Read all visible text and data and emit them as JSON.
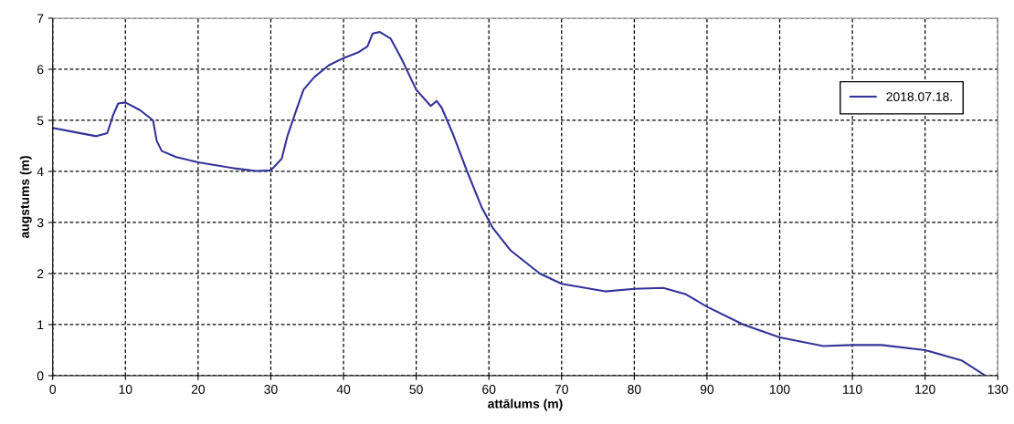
{
  "chart_data": {
    "type": "line",
    "xlabel": "attālums (m)",
    "ylabel": "augstums (m)",
    "x": [
      0,
      3,
      6,
      7.5,
      8.3,
      9,
      10,
      12,
      13.8,
      14.3,
      15,
      17,
      20,
      25,
      28,
      30,
      31.5,
      32.3,
      33.5,
      34.5,
      36,
      38,
      40,
      42,
      43.3,
      44,
      45,
      46.5,
      48,
      49,
      50,
      52,
      52.8,
      53.5,
      55,
      57,
      59,
      60.5,
      63,
      67,
      70,
      76,
      80,
      84,
      87,
      90,
      95,
      100,
      106,
      110,
      114,
      120,
      125,
      128.3
    ],
    "series": [
      {
        "name": "2018.07.18.",
        "color": "#333399",
        "values": [
          4.85,
          4.77,
          4.69,
          4.75,
          5.1,
          5.33,
          5.35,
          5.2,
          5.0,
          4.6,
          4.4,
          4.28,
          4.18,
          4.06,
          4.01,
          4.02,
          4.25,
          4.7,
          5.2,
          5.6,
          5.85,
          6.08,
          6.22,
          6.33,
          6.45,
          6.7,
          6.73,
          6.6,
          6.2,
          5.9,
          5.6,
          5.28,
          5.38,
          5.25,
          4.75,
          4.0,
          3.3,
          2.9,
          2.45,
          2.0,
          1.8,
          1.65,
          1.7,
          1.72,
          1.6,
          1.35,
          1.0,
          0.75,
          0.58,
          0.6,
          0.6,
          0.5,
          0.3,
          0.0
        ]
      }
    ],
    "xlim": [
      0,
      130
    ],
    "xticks": [
      0,
      10,
      20,
      30,
      40,
      50,
      60,
      70,
      80,
      90,
      100,
      110,
      120,
      130
    ],
    "ylim": [
      0,
      7
    ],
    "yticks": [
      0,
      1,
      2,
      3,
      4,
      5,
      6,
      7
    ],
    "grid": true,
    "legend": "top right",
    "marker": "none",
    "line_style": "solid"
  }
}
